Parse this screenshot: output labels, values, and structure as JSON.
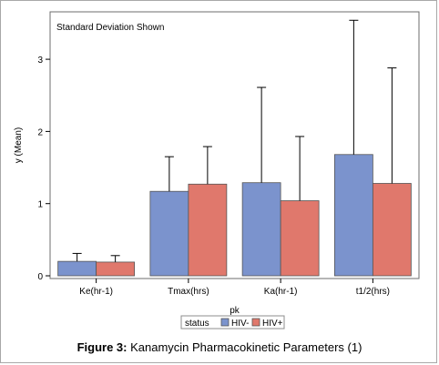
{
  "chart_data": {
    "type": "bar",
    "inset_note": "Standard Deviation Shown",
    "xlabel": "pk",
    "ylabel": "y (Mean)",
    "ylim": [
      0,
      3.6
    ],
    "yticks": [
      "0",
      "1",
      "2",
      "3"
    ],
    "categories": [
      "Ke(hr-1)",
      "Tmax(hrs)",
      "Ka(hr-1)",
      "t1/2(hrs)"
    ],
    "legend_title": "status",
    "legend_position": "bottom-center",
    "grid": false,
    "series": [
      {
        "name": "HIV-",
        "color": "#7b93cd",
        "values": [
          0.2,
          1.17,
          1.29,
          1.68
        ],
        "sd": [
          0.11,
          0.48,
          1.32,
          1.86
        ]
      },
      {
        "name": "HIV+",
        "color": "#e0786c",
        "values": [
          0.19,
          1.27,
          1.04,
          1.28
        ],
        "sd": [
          0.09,
          0.52,
          0.89,
          1.6
        ]
      }
    ]
  },
  "caption": {
    "label": "Figure 3:",
    "text": " Kanamycin Pharmacokinetic Parameters (1)"
  }
}
